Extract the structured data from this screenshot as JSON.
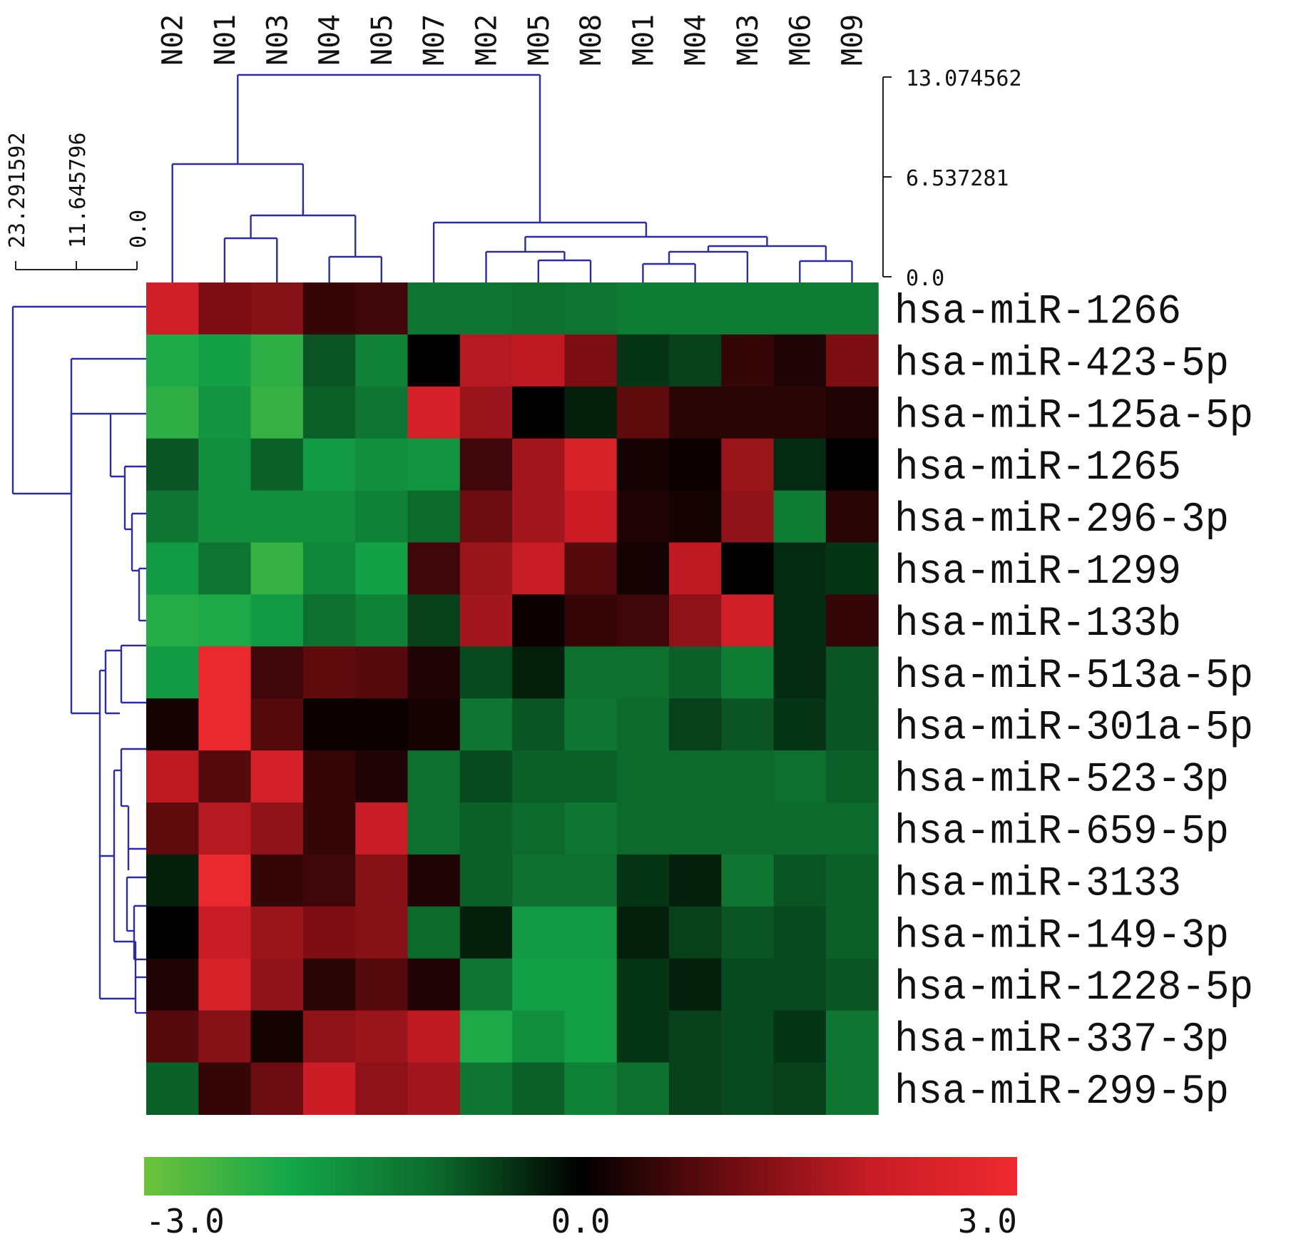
{
  "chart_data": {
    "type": "heatmap",
    "title": "",
    "xlabel": "",
    "ylabel": "",
    "columns": [
      "N02",
      "N01",
      "N03",
      "N04",
      "N05",
      "M07",
      "M02",
      "M05",
      "M08",
      "M01",
      "M04",
      "M03",
      "M06",
      "M09"
    ],
    "rows": [
      "hsa-miR-1266",
      "hsa-miR-423-5p",
      "hsa-miR-125a-5p",
      "hsa-miR-1265",
      "hsa-miR-296-3p",
      "hsa-miR-1299",
      "hsa-miR-133b",
      "hsa-miR-513a-5p",
      "hsa-miR-301a-5p",
      "hsa-miR-523-3p",
      "hsa-miR-659-5p",
      "hsa-miR-3133",
      "hsa-miR-149-3p",
      "hsa-miR-1228-5p",
      "hsa-miR-337-3p",
      "hsa-miR-299-5p"
    ],
    "values": [
      [
        2.2,
        1.2,
        1.3,
        0.5,
        0.6,
        -1.2,
        -1.2,
        -1.1,
        -1.2,
        -1.3,
        -1.3,
        -1.3,
        -1.3,
        -1.3
      ],
      [
        -2.1,
        -1.9,
        -2.3,
        -0.8,
        -1.4,
        0.0,
        1.8,
        1.9,
        1.2,
        -0.5,
        -0.6,
        0.5,
        0.3,
        1.2
      ],
      [
        -2.3,
        -1.7,
        -2.4,
        -0.9,
        -1.2,
        2.3,
        1.5,
        0.0,
        -0.3,
        0.9,
        0.4,
        0.4,
        0.4,
        0.3
      ],
      [
        -0.8,
        -1.6,
        -0.9,
        -1.8,
        -1.6,
        -1.7,
        0.6,
        1.6,
        2.4,
        0.2,
        0.1,
        1.5,
        -0.4,
        0.0
      ],
      [
        -1.2,
        -1.6,
        -1.6,
        -1.6,
        -1.4,
        -1.0,
        1.0,
        1.6,
        2.1,
        0.3,
        0.2,
        1.4,
        -1.3,
        0.4
      ],
      [
        -1.8,
        -1.2,
        -2.4,
        -1.5,
        -1.9,
        0.6,
        1.5,
        2.0,
        0.8,
        0.2,
        1.9,
        0.0,
        -0.4,
        -0.5
      ],
      [
        -2.2,
        -2.1,
        -1.8,
        -1.1,
        -1.4,
        -0.6,
        1.6,
        0.1,
        0.5,
        0.6,
        1.4,
        2.2,
        -0.4,
        0.5
      ],
      [
        -1.8,
        2.9,
        0.6,
        0.9,
        0.8,
        0.3,
        -0.7,
        -0.3,
        -1.1,
        -1.1,
        -0.9,
        -1.3,
        -0.4,
        -0.8
      ],
      [
        0.2,
        2.9,
        0.8,
        0.1,
        0.1,
        0.2,
        -1.2,
        -0.8,
        -1.2,
        -1.0,
        -0.6,
        -0.8,
        -0.5,
        -0.8
      ],
      [
        1.9,
        0.8,
        2.3,
        0.5,
        0.3,
        -1.1,
        -0.7,
        -0.9,
        -0.9,
        -1.0,
        -1.0,
        -1.0,
        -1.1,
        -0.9
      ],
      [
        0.9,
        1.8,
        1.4,
        0.5,
        2.0,
        -1.1,
        -0.9,
        -1.0,
        -1.2,
        -1.0,
        -1.0,
        -1.0,
        -1.0,
        -1.0
      ],
      [
        -0.3,
        2.9,
        0.5,
        0.6,
        1.3,
        0.3,
        -0.9,
        -1.1,
        -1.1,
        -0.5,
        -0.3,
        -1.2,
        -0.8,
        -0.9
      ],
      [
        0.0,
        2.0,
        1.5,
        1.2,
        1.3,
        -1.0,
        -0.3,
        -1.8,
        -1.8,
        -0.3,
        -0.6,
        -0.8,
        -0.7,
        -0.9
      ],
      [
        0.3,
        2.4,
        1.4,
        0.4,
        0.8,
        0.3,
        -1.2,
        -1.9,
        -1.9,
        -0.5,
        -0.3,
        -0.7,
        -0.7,
        -0.8
      ],
      [
        0.8,
        1.3,
        0.2,
        1.4,
        1.5,
        1.9,
        -2.1,
        -1.6,
        -1.9,
        -0.5,
        -0.6,
        -0.7,
        -0.5,
        -1.2
      ],
      [
        -0.9,
        0.5,
        1.0,
        2.1,
        1.4,
        1.6,
        -1.2,
        -0.9,
        -1.4,
        -1.1,
        -0.6,
        -0.7,
        -0.6,
        -1.2
      ]
    ],
    "col_dendrogram": {
      "ticks": [
        "13.074562",
        "6.537281",
        "0.0"
      ],
      "range": [
        0,
        13.074562
      ]
    },
    "row_dendrogram": {
      "ticks": [
        "23.291592",
        "11.645796",
        "0.0"
      ],
      "range": [
        0,
        23.291592
      ]
    },
    "colorbar": {
      "range": [
        -3.0,
        3.0
      ],
      "ticks": [
        "-3.0",
        "0.0",
        "3.0"
      ],
      "colors": [
        "#6ec23a",
        "#14a64a",
        "#0c6a2c",
        "#000000",
        "#6a0c10",
        "#c81c26",
        "#ee2a30"
      ]
    },
    "grid": false,
    "legend_position": "bottom"
  }
}
